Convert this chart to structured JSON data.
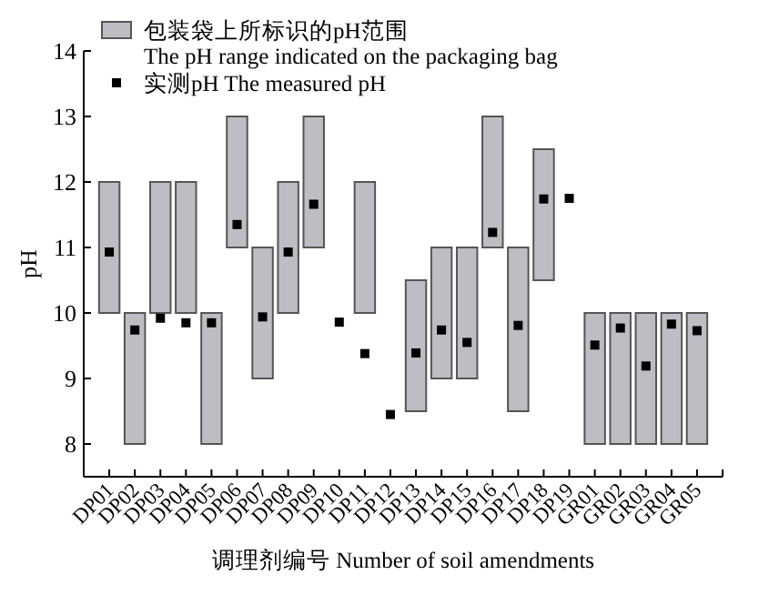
{
  "chart_data": {
    "type": "bar",
    "ylabel": "pH",
    "xlabel": "调理剂编号 Number of soil amendments",
    "categories": [
      "DP01",
      "DP02",
      "DP03",
      "DP04",
      "DP05",
      "DP06",
      "DP07",
      "DP08",
      "DP09",
      "DP10",
      "DP11",
      "DP12",
      "DP13",
      "DP14",
      "DP15",
      "DP16",
      "DP17",
      "DP18",
      "DP19",
      "GR01",
      "GR02",
      "GR03",
      "GR04",
      "GR05"
    ],
    "series": [
      {
        "name": "包装袋上所标识的pH范围\nThe pH range indicated on the packaging bag",
        "color": "#c0bcc4",
        "values": [
          2,
          2,
          2,
          2,
          2,
          2,
          2,
          2,
          2,
          null,
          2,
          null,
          2,
          2,
          2,
          2,
          2.5,
          2,
          null,
          2,
          2,
          2,
          2,
          2
        ],
        "base": [
          10,
          8,
          10,
          10,
          8,
          11,
          9,
          10,
          11,
          null,
          10,
          null,
          8.5,
          9,
          9,
          11,
          8.5,
          10.5,
          null,
          8,
          8,
          8,
          8,
          8
        ]
      },
      {
        "name": "实测pH The measured pH",
        "type": "scatter",
        "color": "#000000",
        "marker": "square",
        "x": [
          "DP01",
          "DP02",
          "DP03",
          "DP04",
          "DP05",
          "DP06",
          "DP07",
          "DP08",
          "DP09",
          "DP10",
          "DP11",
          "DP12",
          "DP13",
          "DP14",
          "DP15",
          "DP16",
          "DP17",
          "DP18",
          "DP19",
          "GR01",
          "GR02",
          "GR03",
          "GR04",
          "GR05"
        ],
        "values": [
          10.93,
          9.74,
          9.92,
          9.85,
          9.85,
          11.35,
          9.94,
          10.93,
          11.66,
          9.86,
          9.38,
          8.45,
          9.39,
          9.74,
          9.55,
          11.23,
          9.81,
          11.74,
          11.75,
          9.51,
          9.77,
          9.19,
          9.83,
          9.73
        ]
      }
    ],
    "ylim": [
      7.5,
      14
    ],
    "yticks": [
      8,
      9,
      10,
      11,
      12,
      13,
      14
    ],
    "legend": "top left",
    "grid": false
  }
}
